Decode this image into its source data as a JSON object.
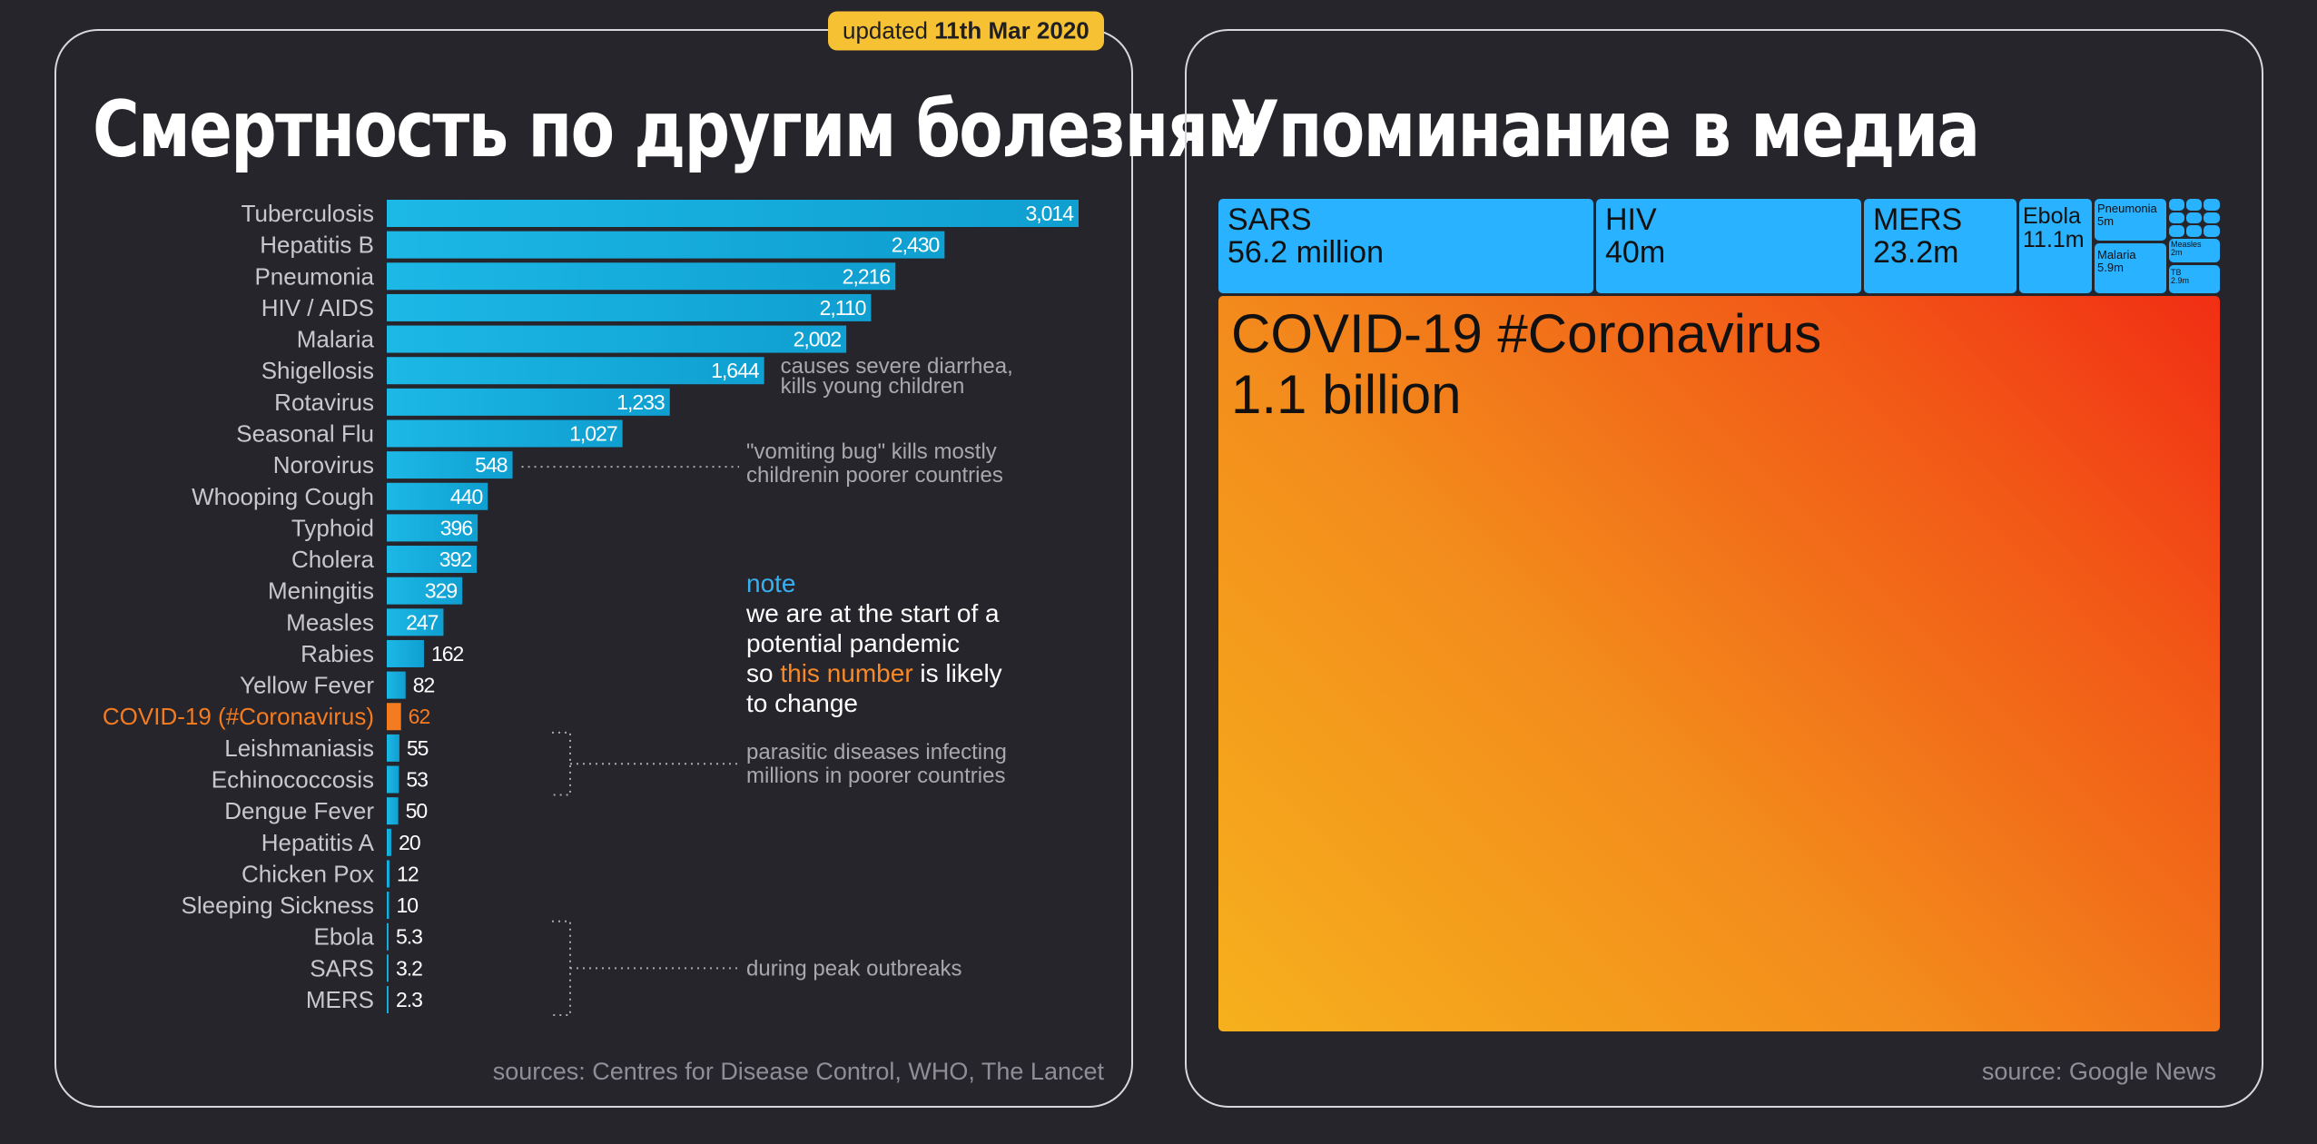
{
  "left_panel": {
    "title": "Смертность по другим болезням",
    "badge_prefix": "updated ",
    "badge_date": "11th Mar 2020",
    "source": "sources: Centres for Disease Control, WHO, The Lancet",
    "note": {
      "label": "note",
      "line1": "we are at the start of a",
      "line2": "potential pandemic",
      "line3_before": "so ",
      "line3_highlight": "this number",
      "line3_after": " is likely",
      "line4": "to change"
    }
  },
  "right_panel": {
    "title": "Упоминание в медиа",
    "source": "source: Google News"
  },
  "colors": {
    "background": "#26252b",
    "bar": "#0f9fd0",
    "covid_bar": "#f47b20",
    "treemap_tile": "#29b2ff",
    "note_label": "#38b1f2",
    "badge": "#f6c233"
  },
  "chart_data": [
    {
      "type": "bar",
      "orientation": "horizontal",
      "title": "Смертность по другим болезням",
      "categories": [
        "Tuberculosis",
        "Hepatitis B",
        "Pneumonia",
        "HIV / AIDS",
        "Malaria",
        "Shigellosis",
        "Rotavirus",
        "Seasonal Flu",
        "Norovirus",
        "Whooping Cough",
        "Typhoid",
        "Cholera",
        "Meningitis",
        "Measles",
        "Rabies",
        "Yellow Fever",
        "COVID-19 (#Coronavirus)",
        "Leishmaniasis",
        "Echinococcosis",
        "Dengue Fever",
        "Hepatitis A",
        "Chicken Pox",
        "Sleeping Sickness",
        "Ebola",
        "SARS",
        "MERS"
      ],
      "values": [
        3014,
        2430,
        2216,
        2110,
        2002,
        1644,
        1233,
        1027,
        548,
        440,
        396,
        392,
        329,
        247,
        162,
        82,
        62,
        55,
        53,
        50,
        20,
        12,
        10,
        5.3,
        3.2,
        2.3
      ],
      "value_labels": [
        "3,014",
        "2,430",
        "2,216",
        "2,110",
        "2,002",
        "1,644",
        "1,233",
        "1,027",
        "548",
        "440",
        "396",
        "392",
        "329",
        "247",
        "162",
        "82",
        "62",
        "55",
        "53",
        "50",
        "20",
        "12",
        "10",
        "5.3",
        "3.2",
        "2.3"
      ],
      "highlight": "COVID-19 (#Coronavirus)",
      "annotations": [
        {
          "anchor": "Shigellosis",
          "text": [
            "causes severe diarrhea,",
            "kills young children"
          ]
        },
        {
          "anchor": "Norovirus",
          "text": [
            "\"vomiting bug\" kills mostly",
            "childrenin poorer countries"
          ]
        },
        {
          "anchor": "Leishmaniasis",
          "anchor_end": "Echinococcosis",
          "text": [
            "parasitic diseases infecting",
            "millions in poorer countries"
          ]
        },
        {
          "anchor": "Ebola",
          "anchor_end": "MERS",
          "text": [
            "during peak outbreaks"
          ]
        }
      ]
    },
    {
      "type": "treemap",
      "title": "Упоминание в медиа",
      "items": [
        {
          "name": "COVID-19 #Coronavirus",
          "label": "1.1 billion",
          "value": 1100
        },
        {
          "name": "SARS",
          "label": "56.2 million",
          "value": 56.2
        },
        {
          "name": "HIV",
          "label": "40m",
          "value": 40
        },
        {
          "name": "MERS",
          "label": "23.2m",
          "value": 23.2
        },
        {
          "name": "Ebola",
          "label": "11.1m",
          "value": 11.1
        },
        {
          "name": "Pneumonia",
          "label": "5m",
          "value": 5
        },
        {
          "name": "Malaria",
          "label": "5.9m",
          "value": 5.9
        },
        {
          "name": "Measles",
          "label": "2m",
          "value": 2
        },
        {
          "name": "TB",
          "label": "2.9m",
          "value": 2.9
        }
      ]
    }
  ]
}
